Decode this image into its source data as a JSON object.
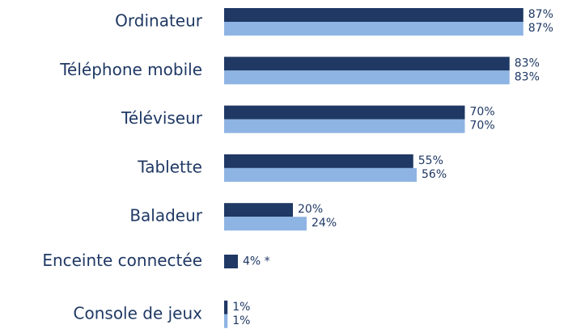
{
  "chart_data": {
    "type": "bar",
    "orientation": "horizontal",
    "categories": [
      "Ordinateur",
      "Téléphone mobile",
      "Téléviseur",
      "Tablette",
      "Baladeur",
      "Enceinte connectée",
      "Console de jeux"
    ],
    "series": [
      {
        "color": "#1f3864",
        "values": [
          87,
          83,
          70,
          55,
          20,
          4,
          1
        ],
        "value_labels": [
          "87%",
          "83%",
          "70%",
          "55%",
          "20%",
          "4% *",
          "1%"
        ]
      },
      {
        "color": "#8eb4e3",
        "values": [
          87,
          83,
          70,
          56,
          24,
          null,
          1
        ],
        "value_labels": [
          "87%",
          "83%",
          "70%",
          "56%",
          "24%",
          null,
          "1%"
        ]
      }
    ],
    "xlim": [
      0,
      100
    ]
  }
}
